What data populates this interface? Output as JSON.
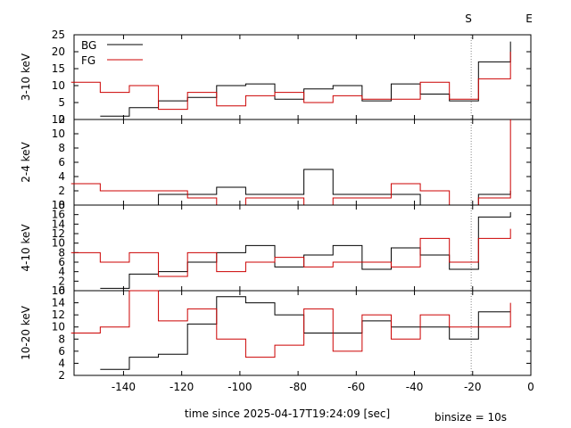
{
  "figure": {
    "xlabel": "time since 2025-04-17T19:24:09 [sec]",
    "binsize_note": "binsize = 10s",
    "markers": [
      {
        "label": "S",
        "x": -20.5,
        "dashed": true
      },
      {
        "label": "E",
        "x": 0
      }
    ],
    "legend": [
      {
        "label": "BG",
        "color": "#000000"
      },
      {
        "label": "FG",
        "color": "#cc0000"
      }
    ]
  },
  "chart_data": [
    {
      "type": "line",
      "step": true,
      "ylabel": "3-10 keV",
      "xlim": [
        -157,
        0
      ],
      "ylim": [
        0,
        25
      ],
      "yticks": [
        0,
        5,
        10,
        15,
        20,
        25
      ],
      "xticks": [
        -140,
        -120,
        -100,
        -80,
        -60,
        -40,
        -20,
        0
      ],
      "edges": [
        -158,
        -148,
        -138,
        -128,
        -118,
        -108,
        -98,
        -88,
        -78,
        -68,
        -58,
        -48,
        -38,
        -28,
        -18,
        -7
      ],
      "series": [
        {
          "name": "BG",
          "color": "#000000",
          "values": [
            null,
            1,
            3.5,
            5.5,
            6.5,
            10,
            10.5,
            6,
            9,
            10,
            5.5,
            10.5,
            7.5,
            5.5,
            17
          ],
          "end": 23
        },
        {
          "name": "FG",
          "color": "#cc0000",
          "values": [
            11,
            8,
            10,
            3,
            8,
            4,
            7,
            8,
            5,
            7,
            6,
            6,
            11,
            6,
            12
          ],
          "end": 20
        }
      ]
    },
    {
      "type": "line",
      "step": true,
      "ylabel": "2-4 keV",
      "xlim": [
        -157,
        0
      ],
      "ylim": [
        0,
        12
      ],
      "yticks": [
        0,
        2,
        4,
        6,
        8,
        10,
        12
      ],
      "xticks": [
        -140,
        -120,
        -100,
        -80,
        -60,
        -40,
        -20,
        0
      ],
      "edges": [
        -158,
        -148,
        -138,
        -128,
        -118,
        -108,
        -98,
        -88,
        -78,
        -68,
        -58,
        -48,
        -38,
        -28,
        -18,
        -7
      ],
      "series": [
        {
          "name": "BG",
          "color": "#000000",
          "values": [
            null,
            0,
            0,
            1.5,
            1.5,
            2.5,
            1.5,
            1.5,
            5,
            1.5,
            1.5,
            1.5,
            0,
            0,
            1.5
          ],
          "end": 2
        },
        {
          "name": "FG",
          "color": "#cc0000",
          "values": [
            3,
            2,
            2,
            2,
            1,
            0,
            1,
            1,
            0,
            1,
            1,
            3,
            2,
            0,
            1
          ],
          "end": 12
        }
      ]
    },
    {
      "type": "line",
      "step": true,
      "ylabel": "4-10 keV",
      "xlim": [
        -157,
        0
      ],
      "ylim": [
        0,
        18
      ],
      "yticks": [
        0,
        2,
        4,
        6,
        8,
        10,
        12,
        14,
        16,
        18
      ],
      "xticks": [
        -140,
        -120,
        -100,
        -80,
        -60,
        -40,
        -20,
        0
      ],
      "edges": [
        -158,
        -148,
        -138,
        -128,
        -118,
        -108,
        -98,
        -88,
        -78,
        -68,
        -58,
        -48,
        -38,
        -28,
        -18,
        -7
      ],
      "series": [
        {
          "name": "BG",
          "color": "#000000",
          "values": [
            null,
            0.5,
            3.5,
            4,
            6,
            8,
            9.5,
            5,
            7.5,
            9.5,
            4.5,
            9,
            7.5,
            4.5,
            15.5
          ],
          "end": 16.5
        },
        {
          "name": "FG",
          "color": "#cc0000",
          "values": [
            8,
            6,
            8,
            3,
            8,
            4,
            6,
            7,
            5,
            6,
            6,
            5,
            11,
            6,
            11
          ],
          "end": 13
        }
      ]
    },
    {
      "type": "line",
      "step": true,
      "ylabel": "10-20 keV",
      "xlim": [
        -157,
        0
      ],
      "ylim": [
        2,
        16
      ],
      "yticks": [
        2,
        4,
        6,
        8,
        10,
        12,
        14,
        16
      ],
      "xticks": [
        -140,
        -120,
        -100,
        -80,
        -60,
        -40,
        -20,
        0
      ],
      "edges": [
        -158,
        -148,
        -138,
        -128,
        -118,
        -108,
        -98,
        -88,
        -78,
        -68,
        -58,
        -48,
        -38,
        -28,
        -18,
        -7
      ],
      "series": [
        {
          "name": "BG",
          "color": "#000000",
          "values": [
            null,
            3,
            5,
            5.5,
            10.5,
            15,
            14,
            12,
            9,
            9,
            11,
            10,
            10,
            8,
            12.5
          ],
          "end": 12.5
        },
        {
          "name": "FG",
          "color": "#cc0000",
          "values": [
            9,
            10,
            16,
            11,
            13,
            8,
            5,
            7,
            13,
            6,
            12,
            8,
            12,
            10,
            10
          ],
          "end": 14
        }
      ]
    }
  ]
}
